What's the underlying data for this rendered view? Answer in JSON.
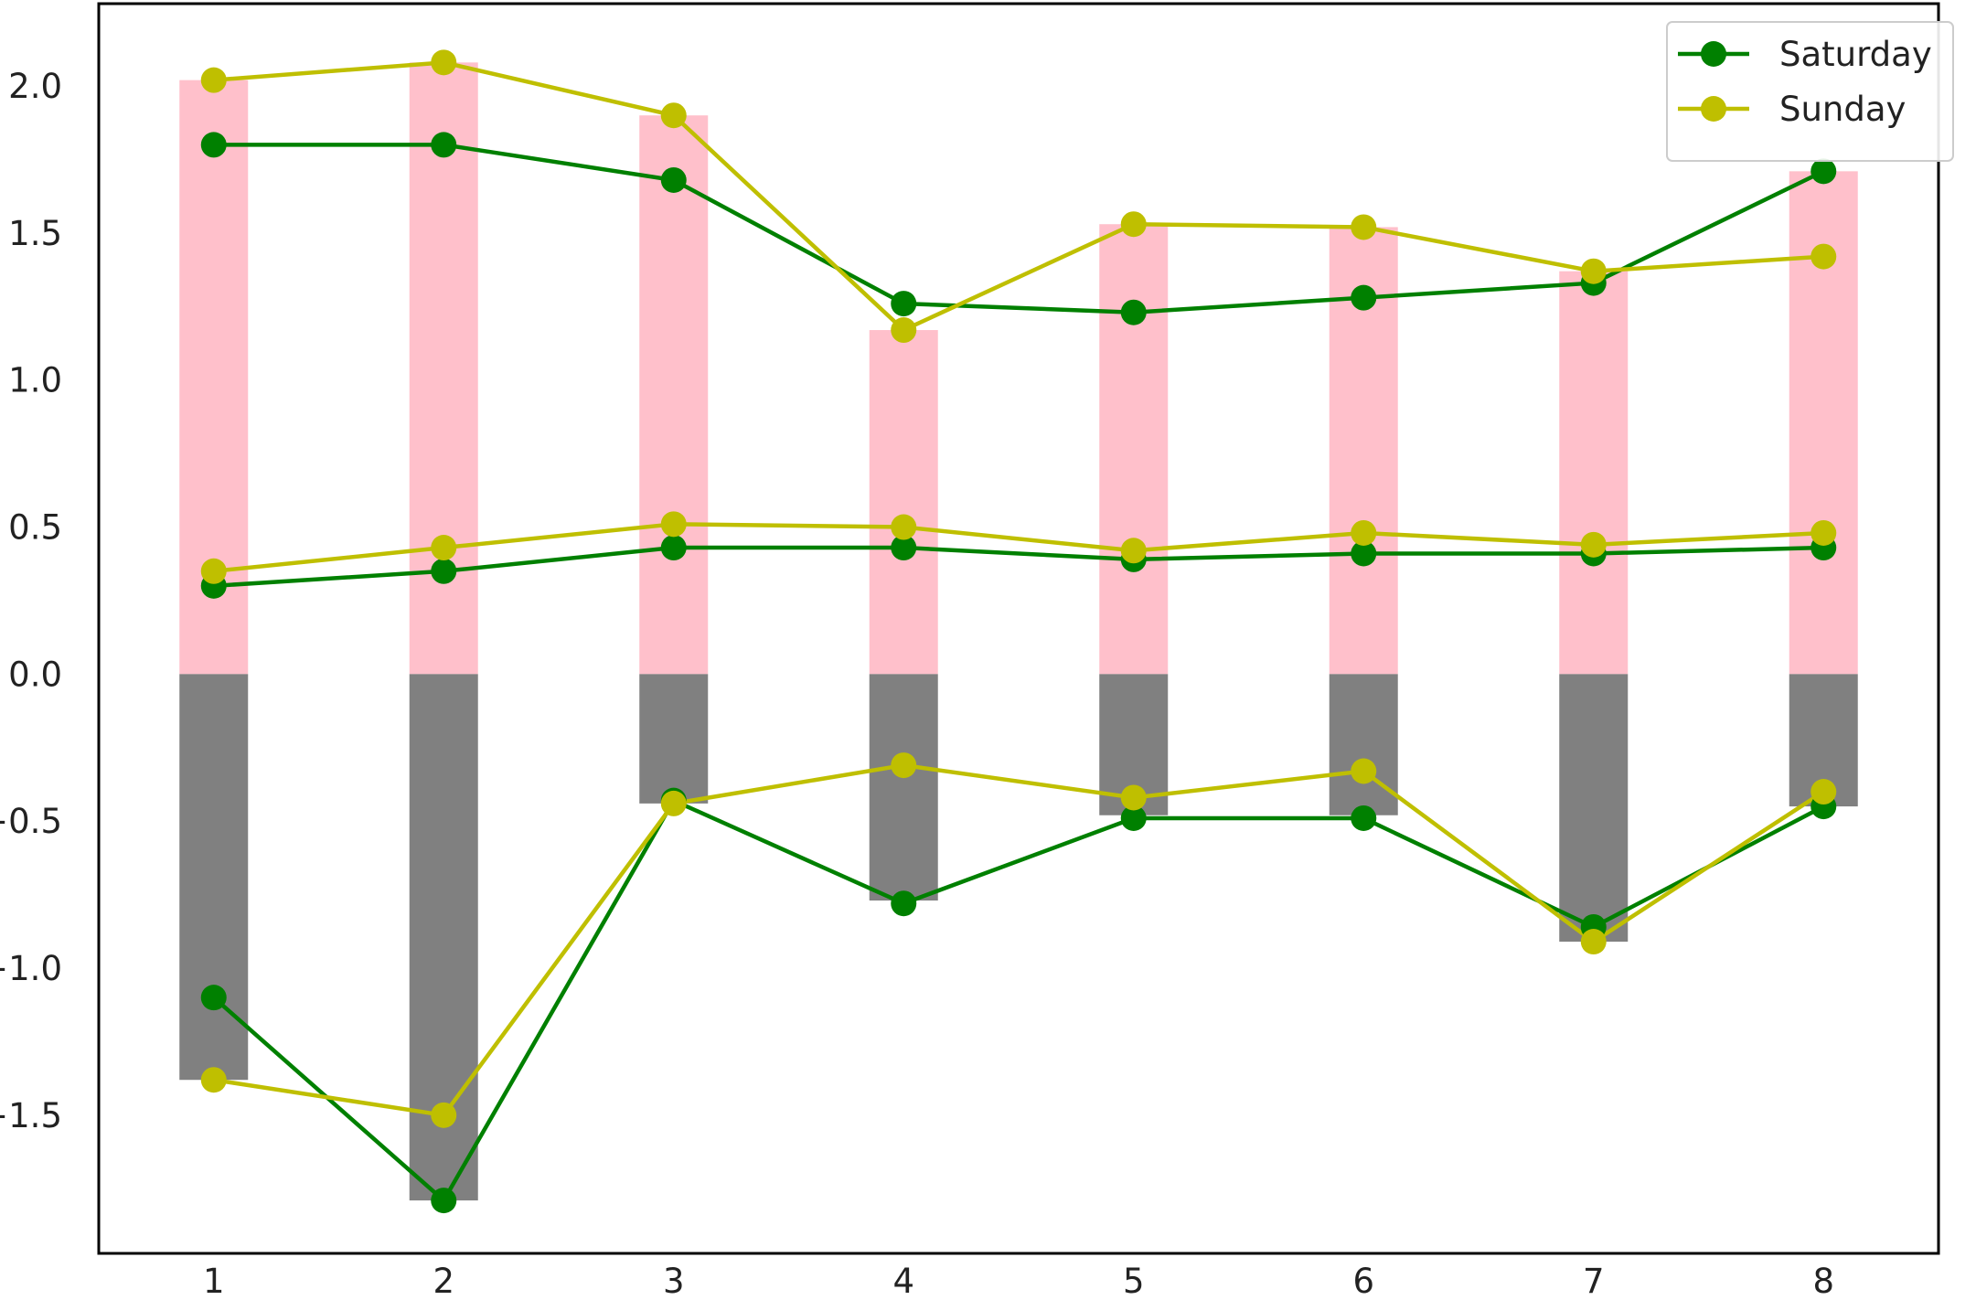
{
  "chart_data": {
    "type": "bar",
    "title": "",
    "xlabel": "",
    "ylabel": "",
    "x": [
      1,
      2,
      3,
      4,
      5,
      6,
      7,
      8
    ],
    "xticks": [
      "1",
      "2",
      "3",
      "4",
      "5",
      "6",
      "7",
      "8"
    ],
    "ylim": [
      -1.97,
      2.28
    ],
    "yticks": [
      -1.5,
      -1.0,
      -0.5,
      0.0,
      0.5,
      1.0,
      1.5,
      2.0
    ],
    "ytick_labels": [
      "−1.5",
      "−1.0",
      "−0.5",
      "0.0",
      "0.5",
      "1.0",
      "1.5",
      "2.0"
    ],
    "grid": false,
    "legend_position": "top-right",
    "bars": [
      {
        "values": [
          2.02,
          2.08,
          1.9,
          1.17,
          1.53,
          1.52,
          1.37,
          1.71
        ],
        "color": "#ffc0cb"
      },
      {
        "values": [
          -1.38,
          -1.79,
          -0.44,
          -0.77,
          -0.48,
          -0.48,
          -0.91,
          -0.45
        ],
        "color": "#808080"
      }
    ],
    "series": [
      {
        "name": "Saturday",
        "color": "#008000",
        "legend": true,
        "values": [
          1.8,
          1.8,
          1.68,
          1.26,
          1.23,
          1.28,
          1.33,
          1.71
        ]
      },
      {
        "name": "Sunday",
        "color": "#bfbf00",
        "legend": true,
        "values": [
          2.02,
          2.08,
          1.9,
          1.17,
          1.53,
          1.52,
          1.37,
          1.42
        ]
      },
      {
        "color": "#008000",
        "legend": false,
        "values": [
          0.3,
          0.35,
          0.43,
          0.43,
          0.39,
          0.41,
          0.41,
          0.43
        ]
      },
      {
        "color": "#bfbf00",
        "legend": false,
        "values": [
          0.35,
          0.43,
          0.51,
          0.5,
          0.42,
          0.48,
          0.44,
          0.48
        ]
      },
      {
        "color": "#008000",
        "legend": false,
        "values": [
          -1.1,
          -1.79,
          -0.43,
          -0.78,
          -0.49,
          -0.49,
          -0.86,
          -0.45
        ]
      },
      {
        "color": "#bfbf00",
        "legend": false,
        "values": [
          -1.38,
          -1.5,
          -0.44,
          -0.31,
          -0.42,
          -0.33,
          -0.91,
          -0.4
        ]
      }
    ]
  }
}
